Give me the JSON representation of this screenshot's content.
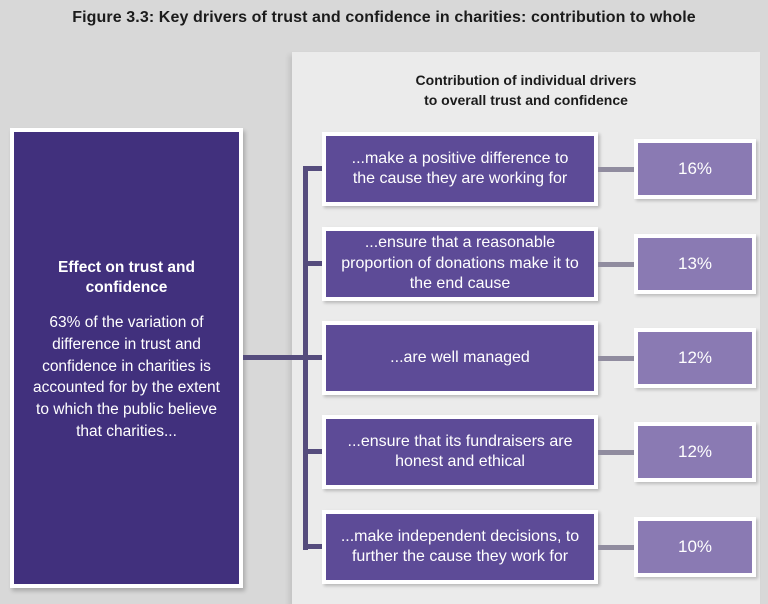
{
  "figure": {
    "title": "Figure 3.3: Key drivers of trust and confidence in charities: contribution to whole"
  },
  "panel": {
    "header_line1": "Contribution of individual drivers",
    "header_line2": "to overall trust and confidence"
  },
  "effect_box": {
    "heading": "Effect on trust and confidence",
    "description": "63% of the variation of difference in trust and confidence in charities is accounted for by the extent to which the public believe that charities..."
  },
  "drivers": [
    {
      "label": "...make a positive difference to the cause they are working for",
      "value": "16%"
    },
    {
      "label": "...ensure that a reasonable proportion of donations make it to the end cause",
      "value": "13%"
    },
    {
      "label": "...are well managed",
      "value": "12%"
    },
    {
      "label": "...ensure that its fundraisers are honest and ethical",
      "value": "12%"
    },
    {
      "label": "...make independent decisions, to further the cause they work for",
      "value": "10%"
    }
  ],
  "colors": {
    "page_background": "#d8d8d8",
    "panel_background": "#ebebeb",
    "effect_box": "#41307d",
    "driver_box": "#5d4b97",
    "percent_box": "#8a7ab3",
    "connector_dark": "#554c7d",
    "connector_light": "#908c9f",
    "text_on_purple": "#ffffff",
    "title_text": "#1b1b1b"
  },
  "chart_data": {
    "type": "bar",
    "title": "Contribution of individual drivers to overall trust and confidence",
    "categories": [
      "...make a positive difference to the cause they are working for",
      "...ensure that a reasonable proportion of donations make it to the end cause",
      "...are well managed",
      "...ensure that its fundraisers are honest and ethical",
      "...make independent decisions, to further the cause they work for"
    ],
    "values": [
      16,
      13,
      12,
      12,
      10
    ],
    "unit": "%"
  }
}
